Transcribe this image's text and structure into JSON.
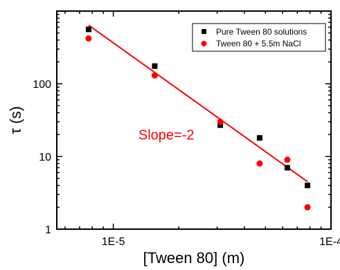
{
  "chart_data": {
    "type": "scatter",
    "title": "",
    "xlabel": "[Tween 80] (m)",
    "ylabel": "τ (s)",
    "xscale": "log",
    "yscale": "log",
    "xlim": [
      5.5e-06,
      0.0001
    ],
    "ylim": [
      1,
      1000
    ],
    "x_ticks": [
      {
        "value": 1e-05,
        "label": "1E-5"
      },
      {
        "value": 0.0001,
        "label": "1E-4"
      }
    ],
    "y_ticks": [
      {
        "value": 1,
        "label": "1"
      },
      {
        "value": 10,
        "label": "10"
      },
      {
        "value": 100,
        "label": "100"
      }
    ],
    "grid": false,
    "legend_position": "top-right",
    "series": [
      {
        "name": "Pure Tween 80 solutions",
        "marker": "square",
        "color": "#000000",
        "points": [
          {
            "x": 7.7e-06,
            "y": 560
          },
          {
            "x": 1.55e-05,
            "y": 175
          },
          {
            "x": 3.1e-05,
            "y": 27
          },
          {
            "x": 4.7e-05,
            "y": 18
          },
          {
            "x": 6.3e-05,
            "y": 7
          },
          {
            "x": 7.8e-05,
            "y": 4
          }
        ]
      },
      {
        "name": "Tween 80 + 5.5m NaCl",
        "marker": "circle",
        "color": "#ff0000",
        "points": [
          {
            "x": 7.7e-06,
            "y": 420
          },
          {
            "x": 1.55e-05,
            "y": 130
          },
          {
            "x": 3.1e-05,
            "y": 30
          },
          {
            "x": 4.7e-05,
            "y": 8
          },
          {
            "x": 6.3e-05,
            "y": 9
          },
          {
            "x": 7.8e-05,
            "y": 2
          }
        ]
      }
    ],
    "fit_line": {
      "color": "#ff0000",
      "points": [
        {
          "x": 7.7e-06,
          "y": 640
        },
        {
          "x": 7.8e-05,
          "y": 4.5
        }
      ]
    },
    "annotation": {
      "text": "Slope=-2",
      "color": "#ff0000",
      "x": 1.8e-05,
      "y": 20
    }
  }
}
